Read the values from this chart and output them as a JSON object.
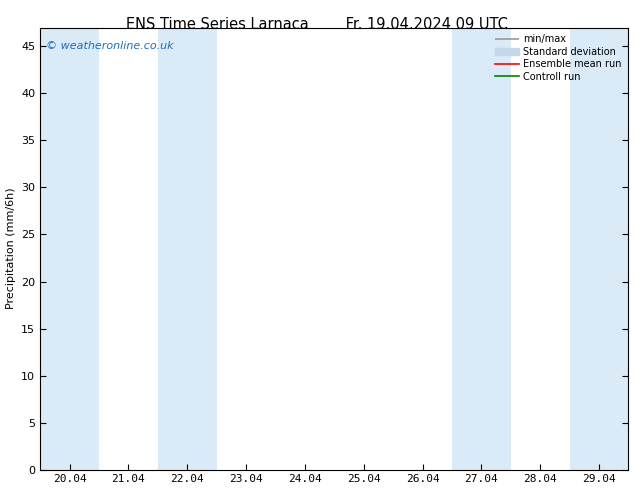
{
  "title_left": "ENS Time Series Larnaca",
  "title_right": "Fr. 19.04.2024 09 UTC",
  "ylabel": "Precipitation (mm/6h)",
  "xlabel": "",
  "ylim": [
    0,
    47
  ],
  "yticks": [
    0,
    5,
    10,
    15,
    20,
    25,
    30,
    35,
    40,
    45
  ],
  "xtick_labels": [
    "20.04",
    "21.04",
    "22.04",
    "23.04",
    "24.04",
    "25.04",
    "26.04",
    "27.04",
    "28.04",
    "29.04"
  ],
  "n_xticks": 10,
  "xlim": [
    0,
    9
  ],
  "shaded_bands": [
    {
      "x_start": 0.0,
      "x_end": 0.92,
      "color": "#daeaf6"
    },
    {
      "x_start": 1.92,
      "x_end": 2.08,
      "color": "#daeaf6"
    },
    {
      "x_start": 6.92,
      "x_end": 7.08,
      "color": "#daeaf6"
    },
    {
      "x_start": 8.92,
      "x_end": 9.0,
      "color": "#daeaf6"
    }
  ],
  "legend_entries": [
    {
      "label": "min/max",
      "color": "#999999",
      "type": "hline"
    },
    {
      "label": "Standard deviation",
      "color": "#c5d8eb",
      "type": "fill"
    },
    {
      "label": "Ensemble mean run",
      "color": "#ff0000",
      "type": "line"
    },
    {
      "label": "Controll run",
      "color": "#008000",
      "type": "line"
    }
  ],
  "watermark": "© weatheronline.co.uk",
  "watermark_color": "#1a6ebd",
  "bg_color": "#ffffff",
  "plot_bg_color": "#ffffff",
  "font_size": 8,
  "title_font_size": 10.5
}
